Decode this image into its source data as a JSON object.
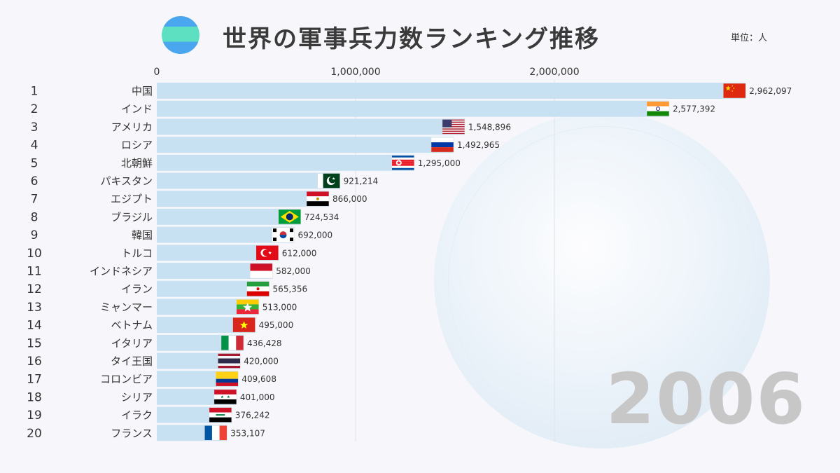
{
  "title": "世界の軍事兵力数ランキング推移",
  "unit_label": "単位：人",
  "year": "2006",
  "colors": {
    "bar": "#c7e1f3",
    "grid": "#dfe3e8",
    "text": "#333333",
    "year": "#c7c7c7"
  },
  "chart_data": {
    "type": "bar",
    "orientation": "horizontal",
    "x_ticks": [
      {
        "value": 0,
        "label": "0"
      },
      {
        "value": 1000000,
        "label": "1,000,000"
      },
      {
        "value": 2000000,
        "label": "2,000,000"
      }
    ],
    "xlim": [
      0,
      3000000
    ],
    "grid": true,
    "rows": [
      {
        "rank": "1",
        "name": "中国",
        "value": 2962097,
        "value_label": "2,962,097",
        "flag": "china-flag"
      },
      {
        "rank": "2",
        "name": "インド",
        "value": 2577392,
        "value_label": "2,577,392",
        "flag": "india-flag"
      },
      {
        "rank": "3",
        "name": "アメリカ",
        "value": 1548896,
        "value_label": "1,548,896",
        "flag": "usa-flag"
      },
      {
        "rank": "4",
        "name": "ロシア",
        "value": 1492965,
        "value_label": "1,492,965",
        "flag": "russia-flag"
      },
      {
        "rank": "5",
        "name": "北朝鮮",
        "value": 1295000,
        "value_label": "1,295,000",
        "flag": "north-korea-flag"
      },
      {
        "rank": "6",
        "name": "パキスタン",
        "value": 921214,
        "value_label": "921,214",
        "flag": "pakistan-flag"
      },
      {
        "rank": "7",
        "name": "エジプト",
        "value": 866000,
        "value_label": "866,000",
        "flag": "egypt-flag"
      },
      {
        "rank": "8",
        "name": "ブラジル",
        "value": 724534,
        "value_label": "724,534",
        "flag": "brazil-flag"
      },
      {
        "rank": "9",
        "name": "韓国",
        "value": 692000,
        "value_label": "692,000",
        "flag": "south-korea-flag"
      },
      {
        "rank": "10",
        "name": "トルコ",
        "value": 612000,
        "value_label": "612,000",
        "flag": "turkey-flag"
      },
      {
        "rank": "11",
        "name": "インドネシア",
        "value": 582000,
        "value_label": "582,000",
        "flag": "indonesia-flag"
      },
      {
        "rank": "12",
        "name": "イラン",
        "value": 565356,
        "value_label": "565,356",
        "flag": "iran-flag"
      },
      {
        "rank": "13",
        "name": "ミャンマー",
        "value": 513000,
        "value_label": "513,000",
        "flag": "myanmar-flag"
      },
      {
        "rank": "14",
        "name": "ベトナム",
        "value": 495000,
        "value_label": "495,000",
        "flag": "vietnam-flag"
      },
      {
        "rank": "15",
        "name": "イタリア",
        "value": 436428,
        "value_label": "436,428",
        "flag": "italy-flag"
      },
      {
        "rank": "16",
        "name": "タイ王国",
        "value": 420000,
        "value_label": "420,000",
        "flag": "thailand-flag"
      },
      {
        "rank": "17",
        "name": "コロンビア",
        "value": 409608,
        "value_label": "409,608",
        "flag": "colombia-flag"
      },
      {
        "rank": "18",
        "name": "シリア",
        "value": 401000,
        "value_label": "401,000",
        "flag": "syria-flag"
      },
      {
        "rank": "19",
        "name": "イラク",
        "value": 376242,
        "value_label": "376,242",
        "flag": "iraq-flag"
      },
      {
        "rank": "20",
        "name": "フランス",
        "value": 353107,
        "value_label": "353,107",
        "flag": "france-flag"
      }
    ]
  }
}
